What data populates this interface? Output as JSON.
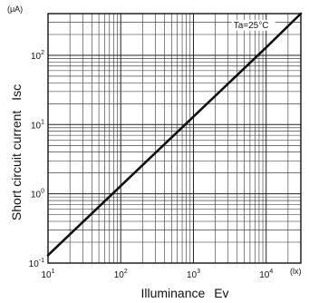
{
  "chart_data": {
    "type": "line",
    "title": "",
    "xlabel": "Illuminance",
    "xlabel_symbol": "Ev",
    "x_unit": "(lx)",
    "ylabel": "Short circuit current",
    "ylabel_symbol": "Isc",
    "y_unit": "(μA)",
    "x_scale": "log",
    "y_scale": "log",
    "xlim": [
      10,
      30000
    ],
    "ylim": [
      0.1,
      400
    ],
    "grid": true,
    "x_ticks": [
      10,
      100,
      1000,
      10000
    ],
    "x_tick_labels": [
      {
        "base": "10",
        "exp": "1"
      },
      {
        "base": "10",
        "exp": "2"
      },
      {
        "base": "10",
        "exp": "3"
      },
      {
        "base": "10",
        "exp": "4"
      }
    ],
    "y_ticks": [
      0.1,
      1,
      10,
      100
    ],
    "y_tick_labels": [
      {
        "base": "10",
        "exp": "-1"
      },
      {
        "base": "10",
        "exp": "0"
      },
      {
        "base": "10",
        "exp": "1"
      },
      {
        "base": "10",
        "exp": "2"
      }
    ],
    "series": [
      {
        "x": [
          10,
          100,
          1000,
          10000,
          30000
        ],
        "y": [
          0.13,
          1.3,
          13,
          130,
          400
        ]
      }
    ],
    "annotations": [
      {
        "text": "Ta=25°C",
        "x": 10000,
        "y": 280
      }
    ]
  }
}
